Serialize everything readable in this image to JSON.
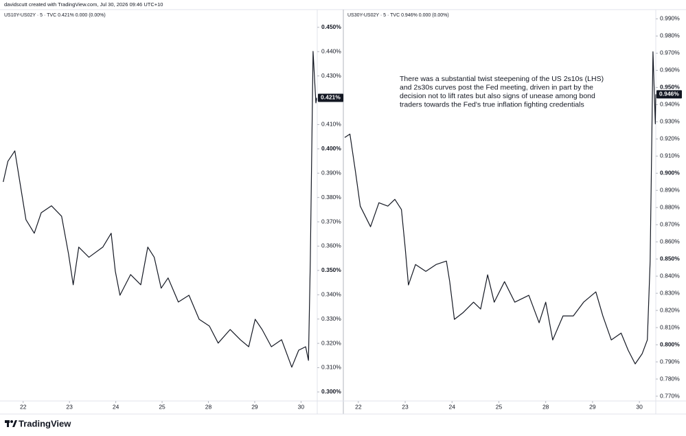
{
  "caption": "davidscutt created with TradingView.com, Jul 30, 2026 09:46 UTC+10",
  "logo": "TradingView",
  "chart_data": [
    {
      "type": "line",
      "legend": "US10Y-US02Y · 5 · TVC  0.421%  0.000 (0.00%)",
      "price_label": "0.421%",
      "color": "#131722",
      "grid": false,
      "xlim": [
        -0.5,
        6.35
      ],
      "xticks": [
        {
          "value": 0,
          "label": "22"
        },
        {
          "value": 1,
          "label": "23"
        },
        {
          "value": 2,
          "label": "24"
        },
        {
          "value": 3,
          "label": "25"
        },
        {
          "value": 4,
          "label": "28"
        },
        {
          "value": 5,
          "label": "29"
        },
        {
          "value": 6,
          "label": "30"
        }
      ],
      "ylim": [
        0.2963,
        0.457
      ],
      "yticks": [
        {
          "value": 0.3,
          "label": "0.300%"
        },
        {
          "value": 0.31,
          "label": "0.310%"
        },
        {
          "value": 0.32,
          "label": "0.320%"
        },
        {
          "value": 0.33,
          "label": "0.330%"
        },
        {
          "value": 0.34,
          "label": "0.340%"
        },
        {
          "value": 0.35,
          "label": "0.350%"
        },
        {
          "value": 0.36,
          "label": "0.360%"
        },
        {
          "value": 0.37,
          "label": "0.370%"
        },
        {
          "value": 0.38,
          "label": "0.380%"
        },
        {
          "value": 0.39,
          "label": "0.390%"
        },
        {
          "value": 0.4,
          "label": "0.400%"
        },
        {
          "value": 0.41,
          "label": "0.410%"
        },
        {
          "value": 0.42,
          "label": "0.420%"
        },
        {
          "value": 0.43,
          "label": "0.430%"
        },
        {
          "value": 0.44,
          "label": "0.440%"
        },
        {
          "value": 0.45,
          "label": "0.450%"
        }
      ],
      "x": [
        -0.43,
        -0.33,
        -0.18,
        -0.06,
        0.06,
        0.24,
        0.39,
        0.61,
        0.83,
        0.98,
        1.08,
        1.2,
        1.42,
        1.72,
        1.9,
        1.99,
        2.09,
        2.32,
        2.54,
        2.69,
        2.83,
        2.98,
        3.13,
        3.35,
        3.58,
        3.8,
        4.02,
        4.21,
        4.47,
        4.69,
        4.87,
        5.01,
        5.16,
        5.36,
        5.58,
        5.8,
        5.95,
        6.1,
        6.16,
        6.2,
        6.26,
        6.32,
        6.34
      ],
      "values": [
        0.3864,
        0.3949,
        0.3992,
        0.385,
        0.3709,
        0.3653,
        0.3737,
        0.3766,
        0.3723,
        0.3568,
        0.3441,
        0.3596,
        0.3554,
        0.3596,
        0.3653,
        0.3497,
        0.3398,
        0.3483,
        0.3441,
        0.3596,
        0.3554,
        0.3427,
        0.3469,
        0.337,
        0.3398,
        0.3299,
        0.3271,
        0.3201,
        0.3257,
        0.3215,
        0.3186,
        0.3299,
        0.3257,
        0.3186,
        0.3215,
        0.3102,
        0.3172,
        0.3186,
        0.313,
        0.354,
        0.4401,
        0.4189,
        0.421
      ]
    },
    {
      "type": "line",
      "legend": "US30Y-US02Y · 5 · TVC  0.946%  0.000 (0.00%)",
      "price_label": "0.946%",
      "color": "#131722",
      "grid": false,
      "annotation": [
        "There was a substantial twist steepening of the US 2s10s (LHS)",
        "and 2s30s curves post the Fed meeting, driven in part by the",
        "decision not to lift rates but also signs of unease among bond",
        "traders towards the Fed's true inflation fighting credentials"
      ],
      "xlim": [
        -0.32,
        6.35
      ],
      "xticks": [
        {
          "value": 0,
          "label": "22"
        },
        {
          "value": 1,
          "label": "23"
        },
        {
          "value": 2,
          "label": "24"
        },
        {
          "value": 3,
          "label": "25"
        },
        {
          "value": 4,
          "label": "28"
        },
        {
          "value": 5,
          "label": "29"
        },
        {
          "value": 6,
          "label": "30"
        }
      ],
      "ylim": [
        0.7672,
        0.995
      ],
      "yticks": [
        {
          "value": 0.77,
          "label": "0.770%"
        },
        {
          "value": 0.78,
          "label": "0.780%"
        },
        {
          "value": 0.79,
          "label": "0.790%"
        },
        {
          "value": 0.8,
          "label": "0.800%"
        },
        {
          "value": 0.81,
          "label": "0.810%"
        },
        {
          "value": 0.82,
          "label": "0.820%"
        },
        {
          "value": 0.83,
          "label": "0.830%"
        },
        {
          "value": 0.84,
          "label": "0.840%"
        },
        {
          "value": 0.85,
          "label": "0.850%"
        },
        {
          "value": 0.86,
          "label": "0.860%"
        },
        {
          "value": 0.87,
          "label": "0.870%"
        },
        {
          "value": 0.88,
          "label": "0.880%"
        },
        {
          "value": 0.89,
          "label": "0.890%"
        },
        {
          "value": 0.9,
          "label": "0.900%"
        },
        {
          "value": 0.91,
          "label": "0.910%"
        },
        {
          "value": 0.92,
          "label": "0.920%"
        },
        {
          "value": 0.93,
          "label": "0.930%"
        },
        {
          "value": 0.94,
          "label": "0.940%"
        },
        {
          "value": 0.95,
          "label": "0.950%"
        },
        {
          "value": 0.96,
          "label": "0.960%"
        },
        {
          "value": 0.97,
          "label": "0.970%"
        },
        {
          "value": 0.98,
          "label": "0.980%"
        },
        {
          "value": 0.99,
          "label": "0.990%"
        }
      ],
      "x": [
        -0.29,
        -0.18,
        -0.06,
        0.04,
        0.26,
        0.44,
        0.63,
        0.78,
        0.92,
        1.0,
        1.07,
        1.22,
        1.44,
        1.66,
        1.88,
        1.95,
        2.05,
        2.24,
        2.46,
        2.61,
        2.76,
        2.9,
        3.12,
        3.34,
        3.64,
        3.86,
        4.0,
        4.15,
        4.37,
        4.59,
        4.81,
        5.07,
        5.22,
        5.4,
        5.61,
        5.76,
        5.91,
        6.06,
        6.17,
        6.23,
        6.29,
        6.34,
        6.35
      ],
      "values": [
        0.9208,
        0.9228,
        0.9008,
        0.8808,
        0.8688,
        0.8828,
        0.8808,
        0.8848,
        0.8788,
        0.8568,
        0.8348,
        0.8468,
        0.8428,
        0.8468,
        0.8488,
        0.8368,
        0.8148,
        0.8188,
        0.8248,
        0.8208,
        0.8408,
        0.8248,
        0.8368,
        0.8248,
        0.8288,
        0.8128,
        0.8248,
        0.8028,
        0.8168,
        0.8168,
        0.8248,
        0.8308,
        0.8168,
        0.8028,
        0.8068,
        0.7968,
        0.7888,
        0.7948,
        0.8028,
        0.8488,
        0.9708,
        0.9288,
        0.946
      ]
    }
  ]
}
